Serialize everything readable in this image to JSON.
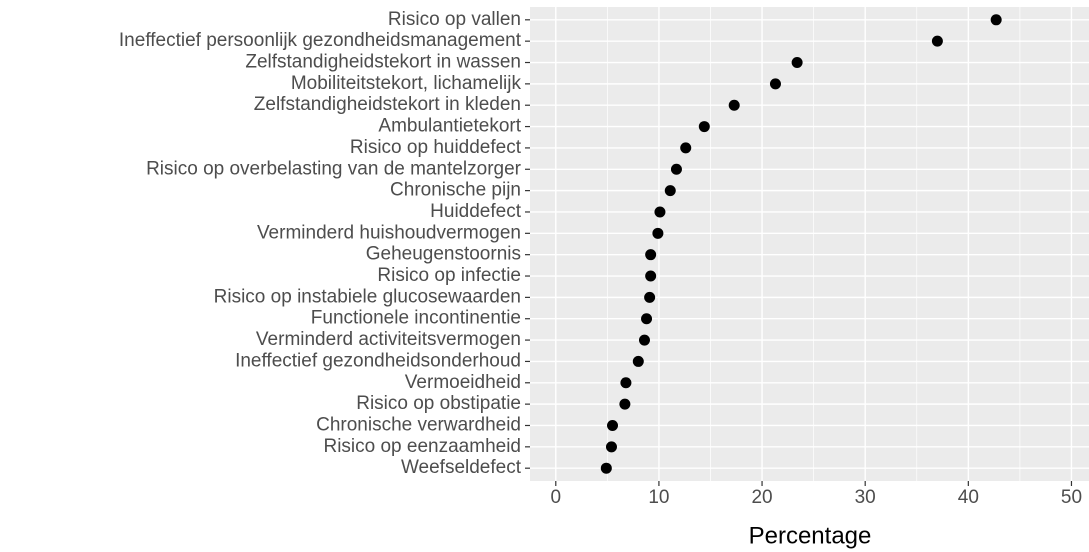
{
  "chart_data": {
    "type": "dot",
    "xlabel": "Percentage",
    "categories": [
      "Risico op vallen",
      "Ineffectief persoonlijk gezondheidsmanagement",
      "Zelfstandigheidstekort in wassen",
      "Mobiliteitstekort, lichamelijk",
      "Zelfstandigheidstekort in kleden",
      "Ambulantietekort",
      "Risico op huiddefect",
      "Risico op overbelasting van de mantelzorger",
      "Chronische pijn",
      "Huiddefect",
      "Verminderd huishoudvermogen",
      "Geheugenstoornis",
      "Risico op infectie",
      "Risico op instabiele glucosewaarden",
      "Functionele incontinentie",
      "Verminderd activiteitsvermogen",
      "Ineffectief gezondheidsonderhoud",
      "Vermoeidheid",
      "Risico op obstipatie",
      "Chronische verwardheid",
      "Risico op eenzaamheid",
      "Weefseldefect"
    ],
    "values": [
      42.7,
      37.0,
      23.4,
      21.3,
      17.3,
      14.4,
      12.6,
      11.7,
      11.1,
      10.1,
      9.9,
      9.2,
      9.2,
      9.1,
      8.8,
      8.6,
      8.0,
      6.8,
      6.7,
      5.5,
      5.4,
      4.9
    ],
    "color": "#000000",
    "xlim": [
      -2.5,
      51.7
    ],
    "xticks": [
      0,
      10,
      20,
      30,
      40,
      50
    ],
    "grid": true
  }
}
